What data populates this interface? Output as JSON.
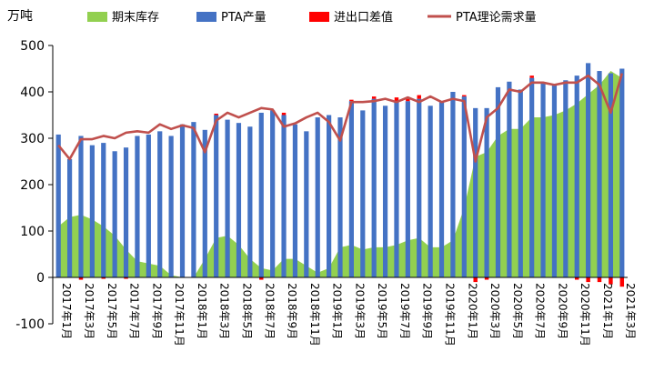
{
  "chart_data": {
    "type": "bar",
    "unit": "万吨",
    "ylim": [
      -100,
      500
    ],
    "yticks": [
      -100,
      0,
      100,
      200,
      300,
      400,
      500
    ],
    "legend": [
      "期末库存",
      "PTA产量",
      "进出口差值",
      "PTA理论需求量"
    ],
    "legend_position": "top",
    "grid": false,
    "categories": [
      "2017年1月",
      "2017年2月",
      "2017年3月",
      "2017年4月",
      "2017年5月",
      "2017年6月",
      "2017年7月",
      "2017年8月",
      "2017年9月",
      "2017年10月",
      "2017年11月",
      "2017年12月",
      "2018年1月",
      "2018年2月",
      "2018年3月",
      "2018年4月",
      "2018年5月",
      "2018年6月",
      "2018年7月",
      "2018年8月",
      "2018年9月",
      "2018年10月",
      "2018年11月",
      "2018年12月",
      "2019年1月",
      "2019年2月",
      "2019年3月",
      "2019年4月",
      "2019年5月",
      "2019年6月",
      "2019年7月",
      "2019年8月",
      "2019年9月",
      "2019年10月",
      "2019年11月",
      "2019年12月",
      "2020年1月",
      "2020年2月",
      "2020年3月",
      "2020年4月",
      "2020年5月",
      "2020年6月",
      "2020年7月",
      "2020年8月",
      "2020年9月",
      "2020年10月",
      "2020年11月",
      "2020年12月",
      "2021年1月",
      "2021年2月",
      "2021年3月"
    ],
    "x_tick_labels": [
      "2017年1月",
      "2017年3月",
      "2017年5月",
      "2017年7月",
      "2017年9月",
      "2017年11月",
      "2018年1月",
      "2018年3月",
      "2018年5月",
      "2018年7月",
      "2018年9月",
      "2018年11月",
      "2019年1月",
      "2019年3月",
      "2019年5月",
      "2019年7月",
      "2019年9月",
      "2019年11月",
      "2020年1月",
      "2020年3月",
      "2020年5月",
      "2020年7月",
      "2020年9月",
      "2020年11月",
      "2021年1月",
      "2021年3月"
    ],
    "series": [
      {
        "name": "期末库存",
        "type": "area",
        "color": "#92d050",
        "values": [
          110,
          130,
          135,
          125,
          110,
          90,
          60,
          35,
          30,
          25,
          5,
          0,
          0,
          40,
          85,
          90,
          70,
          40,
          20,
          15,
          40,
          40,
          25,
          10,
          20,
          65,
          70,
          60,
          65,
          65,
          70,
          80,
          85,
          65,
          65,
          80,
          150,
          260,
          270,
          305,
          320,
          320,
          345,
          345,
          350,
          360,
          375,
          395,
          415,
          445,
          430
        ]
      },
      {
        "name": "PTA产量",
        "type": "bar",
        "color": "#4472c4",
        "values": [
          308,
          255,
          305,
          285,
          290,
          272,
          280,
          305,
          308,
          315,
          305,
          330,
          335,
          318,
          350,
          340,
          333,
          325,
          355,
          360,
          350,
          330,
          315,
          345,
          350,
          345,
          380,
          360,
          385,
          370,
          380,
          380,
          385,
          370,
          380,
          400,
          390,
          365,
          365,
          410,
          422,
          405,
          430,
          420,
          415,
          425,
          435,
          462,
          445,
          440,
          450
        ]
      },
      {
        "name": "进出口差值",
        "type": "bar",
        "color": "#ff0000",
        "values": [
          0,
          0,
          -5,
          0,
          -3,
          0,
          -3,
          0,
          0,
          0,
          0,
          0,
          0,
          0,
          3,
          0,
          0,
          0,
          -5,
          0,
          5,
          0,
          0,
          0,
          0,
          0,
          3,
          0,
          5,
          0,
          8,
          5,
          8,
          0,
          0,
          0,
          3,
          -10,
          -5,
          0,
          0,
          0,
          5,
          0,
          0,
          0,
          -5,
          -10,
          -10,
          -15,
          -20
        ]
      },
      {
        "name": "PTA理论需求量",
        "type": "line",
        "color": "#c0504d",
        "values": [
          285,
          255,
          298,
          298,
          305,
          300,
          312,
          315,
          312,
          330,
          320,
          328,
          322,
          270,
          338,
          355,
          345,
          355,
          365,
          362,
          325,
          332,
          345,
          355,
          335,
          295,
          378,
          378,
          380,
          385,
          378,
          388,
          378,
          390,
          378,
          385,
          380,
          250,
          345,
          365,
          405,
          400,
          420,
          420,
          415,
          420,
          420,
          435,
          415,
          355,
          440
        ]
      }
    ]
  }
}
